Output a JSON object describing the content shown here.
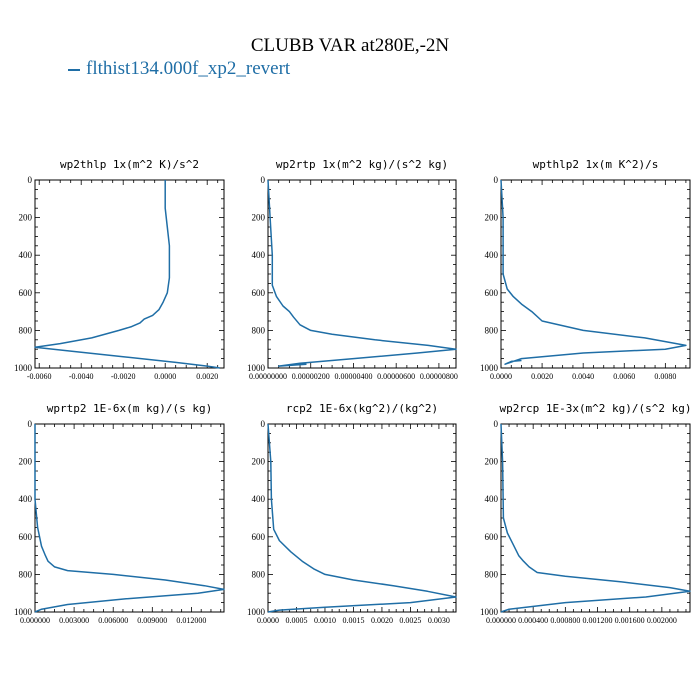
{
  "figure": {
    "title": "CLUBB VAR at280E,-2N",
    "legend_label": "flthist134.000f_xp2_revert",
    "line_color": "#1f6ea6"
  },
  "chart_data": [
    {
      "type": "line",
      "title": "wp2thlp  1x(m^2 K)/s^2",
      "ylim": [
        1000,
        0
      ],
      "yticks": [
        "0",
        "200",
        "400",
        "600",
        "800",
        "1000"
      ],
      "xlim": [
        -0.0062,
        0.0028
      ],
      "xticks": [
        "-0.0060",
        "-0.0040",
        "-0.0020",
        "0.0000",
        "0.0020"
      ],
      "xtick_values": [
        -0.006,
        -0.004,
        -0.002,
        0.0,
        0.002
      ],
      "series": [
        {
          "x": [
            0.0,
            0.0,
            0.0001,
            0.0002,
            0.0002,
            0.0002,
            0.0001,
            -0.0001,
            -0.0003,
            -0.0006,
            -0.001,
            -0.0012,
            -0.0016,
            -0.0022,
            -0.0035,
            -0.005,
            -0.0062,
            -0.0045,
            -0.002,
            0.0005,
            0.002,
            0.0026
          ],
          "y": [
            0,
            150,
            250,
            350,
            450,
            520,
            600,
            650,
            690,
            720,
            740,
            760,
            780,
            800,
            840,
            870,
            890,
            910,
            940,
            970,
            990,
            1000
          ]
        }
      ]
    },
    {
      "type": "line",
      "title": "wp2rtp  1x(m^2 kg)/(s^2 kg)",
      "ylim": [
        1000,
        0
      ],
      "yticks": [
        "0",
        "200",
        "400",
        "600",
        "800",
        "1000"
      ],
      "xlim": [
        0,
        8.8e-06
      ],
      "xticks": [
        "0.00000000",
        "0.00000200",
        "0.00000400",
        "0.00000600",
        "0.00000800"
      ],
      "xtick_values": [
        0,
        2e-06,
        4e-06,
        6e-06,
        8e-06
      ],
      "series": [
        {
          "x": [
            0,
            1e-07,
            2e-07,
            2e-07,
            4e-07,
            7e-07,
            1e-06,
            1.2e-06,
            1.5e-06,
            2e-06,
            3e-06,
            5e-06,
            7.5e-06,
            8.8e-06,
            7e-06,
            4e-06,
            1.5e-06,
            5e-07,
            1.8e-06
          ],
          "y": [
            0,
            200,
            400,
            560,
            620,
            670,
            700,
            730,
            770,
            800,
            820,
            850,
            880,
            900,
            920,
            950,
            975,
            990,
            980
          ]
        }
      ]
    },
    {
      "type": "line",
      "title": "wpthlp2  1x(m K^2)/s",
      "ylim": [
        1000,
        0
      ],
      "yticks": [
        "0",
        "200",
        "400",
        "600",
        "800",
        "1000"
      ],
      "xlim": [
        0,
        0.0092
      ],
      "xticks": [
        "0.0000",
        "0.0020",
        "0.0040",
        "0.0060",
        "0.0080"
      ],
      "xtick_values": [
        0,
        0.002,
        0.004,
        0.006,
        0.008
      ],
      "series": [
        {
          "x": [
            0,
            0.0001,
            0.0001,
            0.0003,
            0.0006,
            0.001,
            0.0015,
            0.002,
            0.004,
            0.007,
            0.009,
            0.008,
            0.004,
            0.001,
            0.0002,
            0.0005,
            0.001
          ],
          "y": [
            0,
            200,
            500,
            580,
            620,
            660,
            700,
            750,
            800,
            840,
            880,
            900,
            920,
            950,
            980,
            965,
            960
          ]
        }
      ]
    },
    {
      "type": "line",
      "title": "wprtp2  1E-6x(m kg)/(s kg)",
      "ylim": [
        1000,
        0
      ],
      "yticks": [
        "0",
        "200",
        "400",
        "600",
        "800",
        "1000"
      ],
      "xlim": [
        0,
        0.0145
      ],
      "xticks": [
        "0.000000",
        "0.003000",
        "0.006000",
        "0.009000",
        "0.012000"
      ],
      "xtick_values": [
        0,
        0.003,
        0.006,
        0.009,
        0.012
      ],
      "series": [
        {
          "x": [
            0,
            0,
            0.0002,
            0.0005,
            0.0008,
            0.001,
            0.0015,
            0.0025,
            0.006,
            0.01,
            0.013,
            0.0145,
            0.0125,
            0.007,
            0.0025,
            0.0005,
            0.0
          ],
          "y": [
            0,
            400,
            550,
            650,
            700,
            730,
            760,
            780,
            800,
            830,
            860,
            880,
            900,
            930,
            960,
            985,
            1000
          ]
        }
      ]
    },
    {
      "type": "line",
      "title": "rcp2  1E-6x(kg^2)/(kg^2)",
      "ylim": [
        1000,
        0
      ],
      "yticks": [
        "0",
        "200",
        "400",
        "600",
        "800",
        "1000"
      ],
      "xlim": [
        0,
        0.0033
      ],
      "xticks": [
        "0.0000",
        "0.0005",
        "0.0010",
        "0.0015",
        "0.0020",
        "0.0025",
        "0.0030"
      ],
      "xtick_values": [
        0,
        0.0005,
        0.001,
        0.0015,
        0.002,
        0.0025,
        0.003
      ],
      "series": [
        {
          "x": [
            0,
            5e-05,
            6e-05,
            0.0001,
            0.0002,
            0.0004,
            0.0006,
            0.0008,
            0.001,
            0.0015,
            0.0022,
            0.0028,
            0.0033,
            0.0025,
            0.001,
            0.0002,
            0.0
          ],
          "y": [
            0,
            200,
            400,
            560,
            620,
            680,
            730,
            770,
            800,
            830,
            860,
            890,
            920,
            950,
            975,
            990,
            1000
          ]
        }
      ]
    },
    {
      "type": "line",
      "title": "wp2rcp  1E-3x(m^2 kg)/(s^2 kg)",
      "ylim": [
        1000,
        0
      ],
      "yticks": [
        "0",
        "200",
        "400",
        "600",
        "800",
        "1000"
      ],
      "xlim": [
        0,
        0.00235
      ],
      "xticks": [
        "0.000000",
        "0.000400",
        "0.000800",
        "0.001200",
        "0.001600",
        "0.002000"
      ],
      "xtick_values": [
        0,
        0.0004,
        0.0008,
        0.0012,
        0.0016,
        0.002
      ],
      "series": [
        {
          "x": [
            0,
            2e-05,
            3e-05,
            8e-05,
            0.00015,
            0.00022,
            0.00028,
            0.00035,
            0.00045,
            0.0008,
            0.0015,
            0.0021,
            0.00235,
            0.0018,
            0.0008,
            0.0001,
            0.0
          ],
          "y": [
            0,
            200,
            500,
            580,
            640,
            700,
            730,
            760,
            790,
            810,
            840,
            870,
            890,
            920,
            950,
            985,
            1000
          ]
        }
      ]
    }
  ]
}
